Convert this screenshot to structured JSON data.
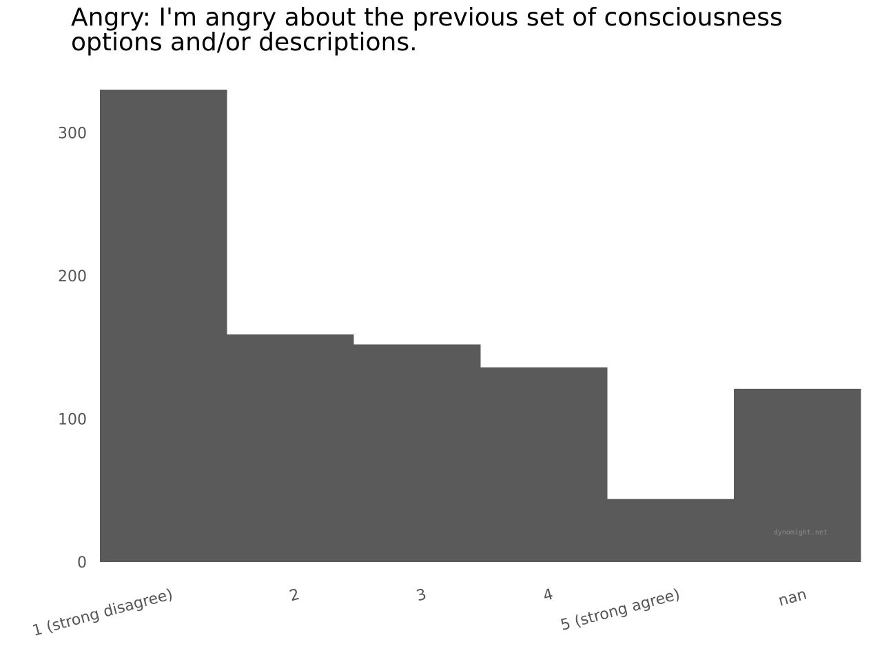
{
  "chart_data": {
    "type": "bar",
    "title": "Angry: I'm angry about the previous set of consciousness options and/or descriptions.",
    "categories": [
      "1 (strong disagree)",
      "2",
      "3",
      "4",
      "5 (strong agree)",
      "nan"
    ],
    "values": [
      330,
      159,
      152,
      136,
      44,
      121
    ],
    "xlabel": "",
    "ylabel": "",
    "ylim": [
      0,
      330
    ],
    "yticks": [
      0,
      100,
      200,
      300
    ],
    "grid": false,
    "bar_color": "#5a5a5a",
    "watermark": "dynomight.net"
  }
}
